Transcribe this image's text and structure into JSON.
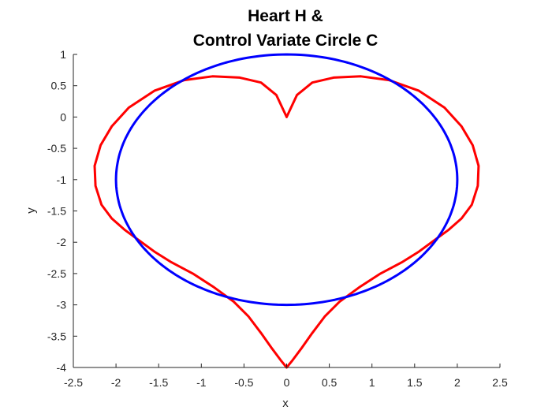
{
  "chart_data": {
    "type": "line",
    "title_lines": [
      "Heart H &",
      "Control Variate Circle C"
    ],
    "xlabel": "x",
    "ylabel": "y",
    "xlim": [
      -2.5,
      2.5
    ],
    "ylim": [
      -4,
      1
    ],
    "xticks": [
      "-2.5",
      "-2",
      "-1.5",
      "-1",
      "-0.5",
      "0",
      "0.5",
      "1",
      "1.5",
      "2",
      "2.5"
    ],
    "yticks": [
      "1",
      "0.5",
      "0",
      "-0.5",
      "-1",
      "-1.5",
      "-2",
      "-2.5",
      "-3",
      "-3.5",
      "-4"
    ],
    "grid": false,
    "series": [
      {
        "color": "#ff0000",
        "style": "dots",
        "x": [
          0.0,
          -0.12,
          -0.3,
          -0.55,
          -0.87,
          -1.2,
          -1.55,
          -1.85,
          -2.05,
          -2.18,
          -2.25,
          -2.24,
          -2.17,
          -2.05,
          -1.9,
          -1.75,
          -1.55,
          -1.35,
          -1.1,
          -0.85,
          -0.62,
          -0.45,
          -0.3,
          -0.17,
          -0.06,
          0.0,
          0.06,
          0.17,
          0.3,
          0.45,
          0.62,
          0.85,
          1.1,
          1.35,
          1.55,
          1.75,
          1.9,
          2.05,
          2.17,
          2.24,
          2.25,
          2.18,
          2.05,
          1.85,
          1.55,
          1.2,
          0.87,
          0.55,
          0.3,
          0.12,
          0.0
        ],
        "y": [
          0.0,
          0.35,
          0.55,
          0.63,
          0.65,
          0.59,
          0.42,
          0.15,
          -0.15,
          -0.45,
          -0.78,
          -1.1,
          -1.4,
          -1.62,
          -1.8,
          -1.95,
          -2.15,
          -2.32,
          -2.5,
          -2.72,
          -2.95,
          -3.18,
          -3.45,
          -3.7,
          -3.9,
          -4.0,
          -3.9,
          -3.7,
          -3.45,
          -3.18,
          -2.95,
          -2.72,
          -2.5,
          -2.32,
          -2.15,
          -1.95,
          -1.8,
          -1.62,
          -1.4,
          -1.1,
          -0.78,
          -0.45,
          -0.15,
          0.15,
          0.42,
          0.59,
          0.65,
          0.63,
          0.55,
          0.35,
          0.0
        ]
      },
      {
        "color": "#0000ff",
        "style": "dots",
        "center": [
          0,
          -1
        ],
        "radius": 2
      }
    ]
  }
}
